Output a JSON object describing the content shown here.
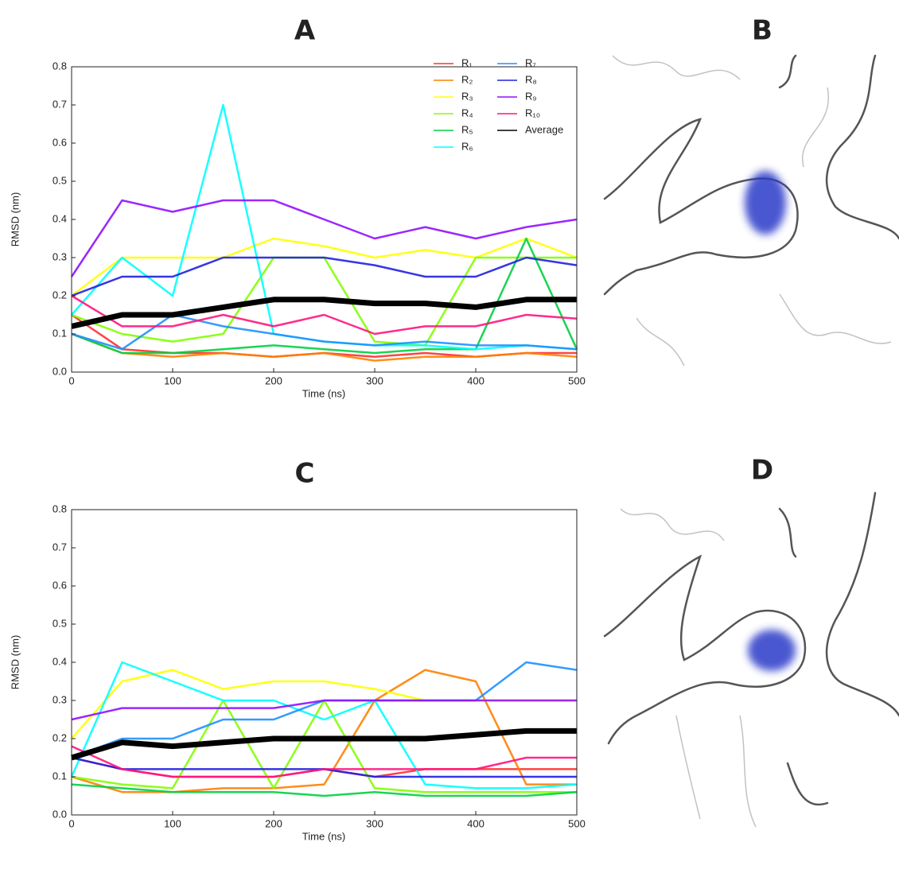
{
  "chart_data": [
    {
      "type": "line",
      "title": "A",
      "x_label": "Time (ns)",
      "y_label": "RMSD (nm)",
      "x": [
        0,
        50,
        100,
        150,
        200,
        250,
        300,
        350,
        400,
        450,
        500
      ],
      "xlim": [
        0,
        500
      ],
      "xticks": [
        0,
        100,
        200,
        300,
        400,
        500
      ],
      "ylim": [
        0,
        0.8
      ],
      "yticks": [
        {
          "value": 0,
          "label": "0.0"
        },
        0.1,
        0.2,
        0.3,
        0.4,
        0.5,
        0.6,
        0.7,
        0.8
      ],
      "legend": "upper right",
      "series": [
        {
          "name": "R₁",
          "color": "#ff3030",
          "values": [
            0.15,
            0.06,
            0.05,
            0.05,
            0.04,
            0.05,
            0.04,
            0.05,
            0.04,
            0.05,
            0.05
          ]
        },
        {
          "name": "R₂",
          "color": "#ff8000",
          "values": [
            0.1,
            0.05,
            0.04,
            0.05,
            0.04,
            0.05,
            0.03,
            0.04,
            0.04,
            0.05,
            0.04
          ]
        },
        {
          "name": "R₃",
          "color": "#ffff00",
          "values": [
            0.2,
            0.3,
            0.3,
            0.3,
            0.35,
            0.33,
            0.3,
            0.32,
            0.3,
            0.35,
            0.3
          ]
        },
        {
          "name": "R₄",
          "color": "#80ff00",
          "values": [
            0.15,
            0.1,
            0.08,
            0.1,
            0.3,
            0.3,
            0.08,
            0.07,
            0.3,
            0.3,
            0.3
          ]
        },
        {
          "name": "R₅",
          "color": "#00d040",
          "values": [
            0.1,
            0.05,
            0.05,
            0.06,
            0.07,
            0.06,
            0.05,
            0.06,
            0.06,
            0.35,
            0.06
          ]
        },
        {
          "name": "R₆",
          "color": "#00ffff",
          "values": [
            0.15,
            0.3,
            0.2,
            0.7,
            0.1,
            0.08,
            0.07,
            0.07,
            0.06,
            0.07,
            0.06
          ]
        },
        {
          "name": "R₇",
          "color": "#1e90ff",
          "values": [
            0.1,
            0.06,
            0.15,
            0.12,
            0.1,
            0.08,
            0.07,
            0.08,
            0.07,
            0.07,
            0.06
          ]
        },
        {
          "name": "R₈",
          "color": "#2020e0",
          "values": [
            0.2,
            0.25,
            0.25,
            0.3,
            0.3,
            0.3,
            0.28,
            0.25,
            0.25,
            0.3,
            0.28
          ]
        },
        {
          "name": "R₉",
          "color": "#9010ff",
          "values": [
            0.25,
            0.45,
            0.42,
            0.45,
            0.45,
            0.4,
            0.35,
            0.38,
            0.35,
            0.38,
            0.4
          ]
        },
        {
          "name": "R₁₀",
          "color": "#ff1480",
          "values": [
            0.2,
            0.12,
            0.12,
            0.15,
            0.12,
            0.15,
            0.1,
            0.12,
            0.12,
            0.15,
            0.14
          ]
        },
        {
          "name": "Average",
          "color": "#000000",
          "values": [
            0.12,
            0.15,
            0.15,
            0.17,
            0.19,
            0.19,
            0.18,
            0.18,
            0.17,
            0.19,
            0.19
          ]
        }
      ]
    },
    {
      "type": "line",
      "title": "C",
      "x_label": "Time (ns)",
      "y_label": "RMSD (nm)",
      "x": [
        0,
        50,
        100,
        150,
        200,
        250,
        300,
        350,
        400,
        450,
        500
      ],
      "xlim": [
        0,
        500
      ],
      "xticks": [
        0,
        100,
        200,
        300,
        400,
        500
      ],
      "ylim": [
        0,
        0.8
      ],
      "yticks": [
        {
          "value": 0,
          "label": "0.0"
        },
        0.1,
        0.2,
        0.3,
        0.4,
        0.5,
        0.6,
        0.7,
        0.8
      ],
      "series": [
        {
          "color": "#ff3030",
          "values": [
            0.15,
            0.12,
            0.1,
            0.1,
            0.1,
            0.12,
            0.1,
            0.12,
            0.12,
            0.12,
            0.12
          ]
        },
        {
          "color": "#ff8000",
          "values": [
            0.1,
            0.06,
            0.06,
            0.07,
            0.07,
            0.08,
            0.3,
            0.38,
            0.35,
            0.08,
            0.08
          ]
        },
        {
          "color": "#ffff00",
          "values": [
            0.2,
            0.35,
            0.38,
            0.33,
            0.35,
            0.35,
            0.33,
            0.3,
            0.3,
            0.3,
            0.3
          ]
        },
        {
          "color": "#80ff00",
          "values": [
            0.1,
            0.08,
            0.07,
            0.3,
            0.07,
            0.3,
            0.07,
            0.06,
            0.06,
            0.06,
            0.06
          ]
        },
        {
          "color": "#00d040",
          "values": [
            0.08,
            0.07,
            0.06,
            0.06,
            0.06,
            0.05,
            0.06,
            0.05,
            0.05,
            0.05,
            0.06
          ]
        },
        {
          "color": "#00ffff",
          "values": [
            0.1,
            0.4,
            0.35,
            0.3,
            0.3,
            0.25,
            0.3,
            0.08,
            0.07,
            0.07,
            0.08
          ]
        },
        {
          "color": "#1e90ff",
          "values": [
            0.15,
            0.2,
            0.2,
            0.25,
            0.25,
            0.3,
            0.3,
            0.3,
            0.3,
            0.4,
            0.38
          ]
        },
        {
          "color": "#2020e0",
          "values": [
            0.15,
            0.12,
            0.12,
            0.12,
            0.12,
            0.12,
            0.1,
            0.1,
            0.1,
            0.1,
            0.1
          ]
        },
        {
          "color": "#9010ff",
          "values": [
            0.25,
            0.28,
            0.28,
            0.28,
            0.28,
            0.3,
            0.3,
            0.3,
            0.3,
            0.3,
            0.3
          ]
        },
        {
          "color": "#ff1480",
          "values": [
            0.18,
            0.12,
            0.1,
            0.1,
            0.1,
            0.12,
            0.12,
            0.12,
            0.12,
            0.15,
            0.15
          ]
        },
        {
          "color": "#000000",
          "values": [
            0.15,
            0.19,
            0.18,
            0.19,
            0.2,
            0.2,
            0.2,
            0.2,
            0.21,
            0.22,
            0.22
          ]
        }
      ]
    }
  ],
  "images": [
    {
      "label": "B"
    },
    {
      "label": "D"
    }
  ]
}
